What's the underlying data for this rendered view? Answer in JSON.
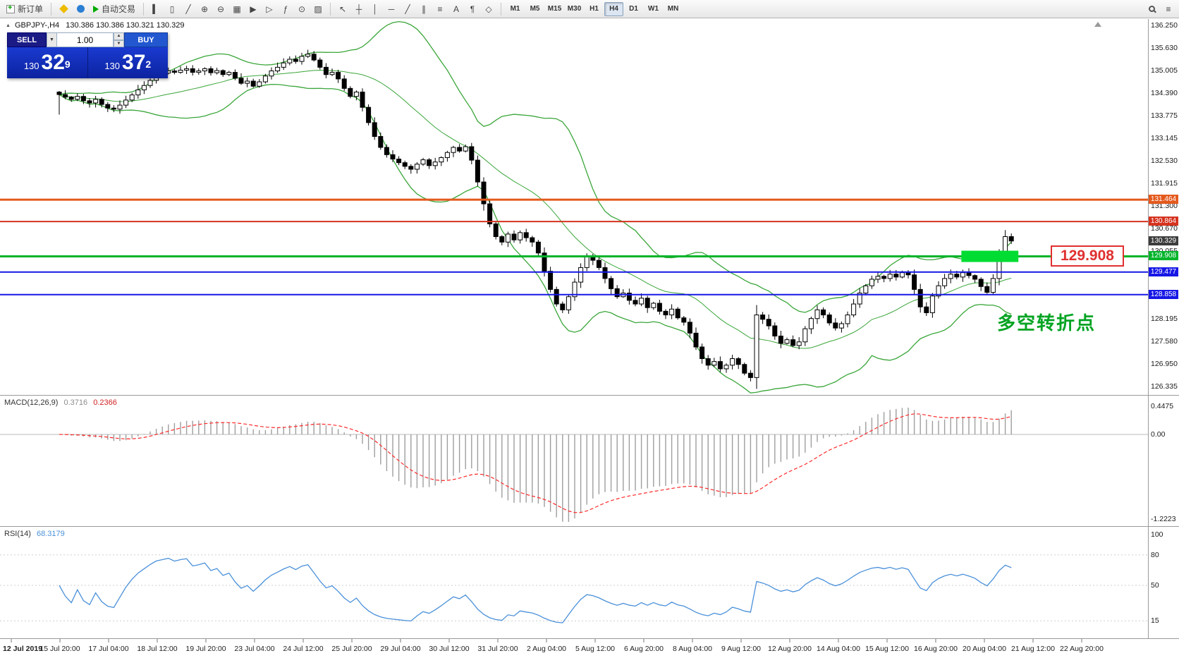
{
  "toolbar": {
    "new_order": "新订单",
    "autotrading": "自动交易",
    "chart_icons": [
      {
        "name": "bar-chart-mode-icon",
        "glyph": "▍"
      },
      {
        "name": "candlestick-mode-icon",
        "glyph": "▯"
      },
      {
        "name": "line-chart-mode-icon",
        "glyph": "╱"
      },
      {
        "name": "zoom-in-icon",
        "glyph": "⊕"
      },
      {
        "name": "zoom-out-icon",
        "glyph": "⊖"
      },
      {
        "name": "tile-windows-icon",
        "glyph": "▦"
      },
      {
        "name": "auto-scroll-icon",
        "glyph": "▶"
      },
      {
        "name": "chart-shift-icon",
        "glyph": "▷"
      },
      {
        "name": "indicators-icon",
        "glyph": "ƒ"
      },
      {
        "name": "periods-icon",
        "glyph": "⊙"
      },
      {
        "name": "templates-icon",
        "glyph": "▨"
      }
    ],
    "draw_icons": [
      {
        "name": "cursor-icon",
        "glyph": "↖"
      },
      {
        "name": "crosshair-icon",
        "glyph": "┼"
      },
      {
        "name": "vertical-line-icon",
        "glyph": "│"
      },
      {
        "name": "horizontal-line-icon",
        "glyph": "─"
      },
      {
        "name": "trendline-icon",
        "glyph": "╱"
      },
      {
        "name": "channel-icon",
        "glyph": "∥"
      },
      {
        "name": "fibonacci-icon",
        "glyph": "≡"
      },
      {
        "name": "text-icon",
        "glyph": "A"
      },
      {
        "name": "label-icon",
        "glyph": "¶"
      },
      {
        "name": "arrows-icon",
        "glyph": "◇"
      }
    ],
    "timeframes": [
      "M1",
      "M5",
      "M15",
      "M30",
      "H1",
      "H4",
      "D1",
      "W1",
      "MN"
    ],
    "active_timeframe": "H4",
    "menu_glyph": "≡"
  },
  "symbol_info": {
    "symbol": "GBPJPY-,H4",
    "ohlc": "130.386 130.386 130.321 130.329"
  },
  "trade_panel": {
    "sell_label": "SELL",
    "buy_label": "BUY",
    "volume": "1.00",
    "sell_prefix": "130",
    "sell_big": "32",
    "sell_sup": "9",
    "buy_prefix": "130",
    "buy_big": "37",
    "buy_sup": "2"
  },
  "price_axis": {
    "labels": [
      "136.250",
      "135.630",
      "135.005",
      "134.390",
      "133.775",
      "133.145",
      "132.530",
      "131.915",
      "131.300",
      "130.670",
      "130.055",
      "129.440",
      "128.820",
      "128.195",
      "127.580",
      "126.950",
      "126.335"
    ]
  },
  "macd": {
    "name": "MACD(12,26,9)",
    "main": "0.3716",
    "signal": "0.2366",
    "axis": [
      "0.4475",
      "0.00",
      "-1.2223"
    ]
  },
  "rsi": {
    "name": "RSI(14)",
    "value": "68.3179",
    "axis": [
      100,
      80,
      50,
      15
    ]
  },
  "time_axis": {
    "labels": [
      "12 Jul 2019",
      "15 Jul 20:00",
      "17 Jul 04:00",
      "18 Jul 12:00",
      "19 Jul 20:00",
      "23 Jul 04:00",
      "24 Jul 12:00",
      "25 Jul 20:00",
      "29 Jul 04:00",
      "30 Jul 12:00",
      "31 Jul 20:00",
      "2 Aug 04:00",
      "5 Aug 12:00",
      "6 Aug 20:00",
      "8 Aug 04:00",
      "9 Aug 12:00",
      "12 Aug 20:00",
      "14 Aug 04:00",
      "15 Aug 12:00",
      "16 Aug 20:00",
      "20 Aug 04:00",
      "21 Aug 12:00",
      "22 Aug 20:00"
    ]
  },
  "annotations": {
    "price_label": "129.908",
    "turning_point": "多空转折点"
  },
  "chart_data": {
    "type": "candlestick",
    "symbol": "GBPJPY-",
    "timeframe": "H4",
    "price_max": 136.25,
    "price_min": 126.335,
    "current_price": 130.329,
    "first_open": 134.42,
    "closes": [
      134.35,
      134.28,
      134.22,
      134.3,
      134.18,
      134.12,
      134.22,
      134.08,
      133.98,
      133.95,
      134.06,
      134.2,
      134.34,
      134.48,
      134.6,
      134.74,
      134.88,
      134.94,
      135.0,
      134.96,
      135.02,
      135.06,
      134.96,
      135.0,
      135.06,
      134.95,
      135.01,
      134.9,
      134.96,
      134.8,
      134.66,
      134.72,
      134.58,
      134.7,
      134.86,
      135.0,
      135.1,
      135.22,
      135.32,
      135.26,
      135.4,
      135.46,
      135.3,
      135.1,
      134.9,
      134.96,
      134.78,
      134.52,
      134.3,
      134.42,
      134.0,
      133.58,
      133.2,
      132.9,
      132.7,
      132.58,
      132.48,
      132.38,
      132.3,
      132.44,
      132.56,
      132.4,
      132.5,
      132.62,
      132.76,
      132.9,
      132.8,
      132.92,
      132.55,
      131.95,
      131.35,
      130.8,
      130.45,
      130.3,
      130.52,
      130.36,
      130.56,
      130.42,
      130.3,
      130.0,
      129.5,
      129.0,
      128.6,
      128.44,
      128.8,
      129.2,
      129.6,
      129.9,
      129.8,
      129.6,
      129.3,
      129.02,
      128.8,
      128.9,
      128.7,
      128.6,
      128.76,
      128.5,
      128.62,
      128.4,
      128.3,
      128.46,
      128.22,
      128.1,
      127.8,
      127.42,
      127.1,
      126.92,
      127.02,
      126.82,
      126.92,
      127.1,
      126.94,
      126.7,
      126.58,
      128.3,
      128.18,
      128.0,
      127.72,
      127.52,
      127.62,
      127.46,
      127.56,
      127.92,
      128.2,
      128.44,
      128.3,
      128.08,
      127.94,
      128.06,
      128.3,
      128.6,
      128.9,
      129.1,
      129.28,
      129.36,
      129.3,
      129.42,
      129.34,
      129.46,
      129.4,
      129.0,
      128.52,
      128.36,
      128.82,
      129.1,
      129.3,
      129.42,
      129.34,
      129.46,
      129.38,
      129.28,
      129.08,
      128.92,
      129.3,
      129.92,
      130.45,
      130.329
    ],
    "indicators": {
      "bollinger_period": 20,
      "bollinger_deviation": 2,
      "macd": [
        12,
        26,
        9
      ],
      "rsi_period": 14
    },
    "levels": [
      {
        "label": "131.464",
        "price": 131.464,
        "color": "#e4591d",
        "line_width": 3
      },
      {
        "label": "130.864",
        "price": 130.864,
        "color": "#d5321f",
        "line_width": 2
      },
      {
        "label": "130.329",
        "price": 130.329,
        "color": "#3c3c3c",
        "line_width": 0
      },
      {
        "label": "129.908",
        "price": 129.908,
        "color": "#00b42a",
        "line_width": 3
      },
      {
        "label": "129.477",
        "price": 129.477,
        "color": "#1717e6",
        "line_width": 2
      },
      {
        "label": "128.858",
        "price": 128.858,
        "color": "#1717e6",
        "line_width": 2
      }
    ],
    "highlight_band": {
      "price": 129.908,
      "color": "#00dc32"
    },
    "colors": {
      "bands": "#3aa63a",
      "bull": "#ffffff",
      "bear": "#000000",
      "outline": "#000000",
      "macd_bars": "#9e9e9e",
      "macd_signal": "#ff2a2a",
      "rsi_line": "#4a90d9"
    }
  }
}
